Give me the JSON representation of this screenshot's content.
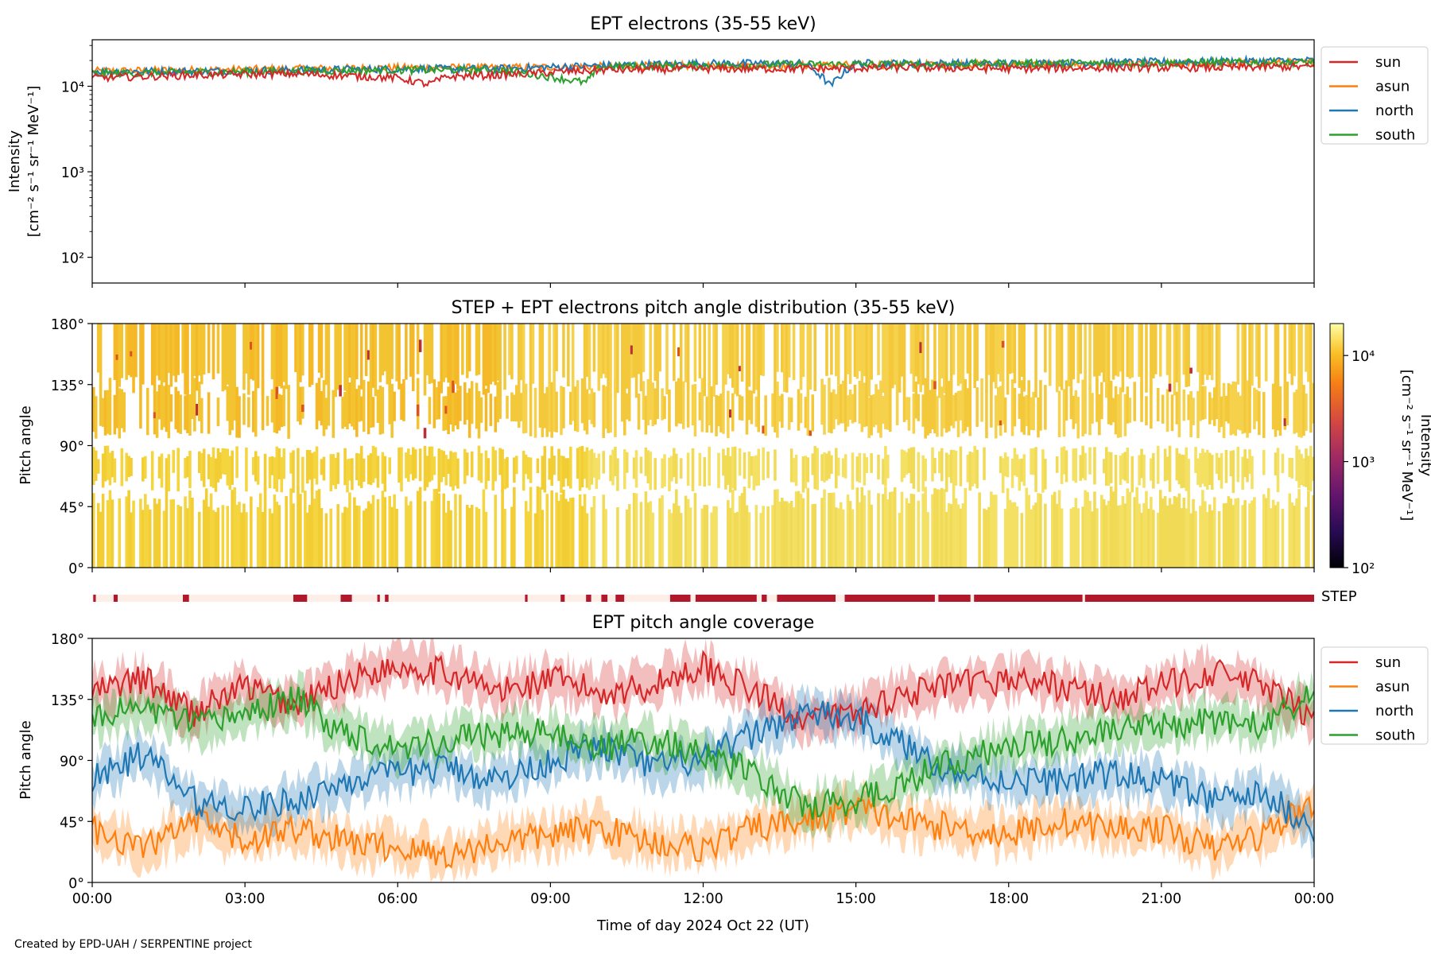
{
  "chart_data": [
    {
      "type": "line",
      "title": "EPT electrons (35-55 keV)",
      "ylabel": "Intensity",
      "ylabel_units": "[cm⁻² s⁻¹ sr⁻¹ MeV⁻¹]",
      "yscale": "log",
      "ylim": [
        50,
        35000
      ],
      "yticks": [
        "10²",
        "10³",
        "10⁴"
      ],
      "x_range_hours": [
        0,
        24
      ],
      "legend_position": "outside-top-right",
      "series": [
        {
          "name": "sun",
          "color": "#d62728",
          "x_hours": [
            0,
            2,
            4,
            6,
            6.6,
            7,
            8,
            9,
            10,
            12,
            14,
            16,
            18,
            20,
            22,
            24
          ],
          "values": [
            12500,
            13500,
            14000,
            12500,
            10500,
            13000,
            13500,
            14500,
            15500,
            16000,
            16000,
            16500,
            16000,
            16500,
            16500,
            17000
          ]
        },
        {
          "name": "asun",
          "color": "#ff7f0e",
          "x_hours": [
            0,
            2,
            4,
            6,
            8,
            10,
            12,
            14,
            16,
            18,
            20,
            22,
            24
          ],
          "values": [
            15000,
            15500,
            16000,
            16500,
            16500,
            17000,
            17500,
            17500,
            18000,
            18000,
            18000,
            18500,
            19000
          ]
        },
        {
          "name": "north",
          "color": "#1f77b4",
          "x_hours": [
            0,
            2,
            4,
            6,
            8,
            10,
            12,
            14,
            14.5,
            15,
            16,
            18,
            20,
            22,
            24
          ],
          "values": [
            15000,
            15000,
            15500,
            16000,
            16000,
            17500,
            18500,
            18500,
            10000,
            18500,
            18500,
            18500,
            19000,
            19500,
            20000
          ]
        },
        {
          "name": "south",
          "color": "#2ca02c",
          "x_hours": [
            0,
            2,
            4,
            6,
            8,
            9.7,
            10,
            12,
            14,
            16,
            18,
            20,
            22,
            24
          ],
          "values": [
            14000,
            14500,
            15000,
            15500,
            15500,
            11000,
            17000,
            17500,
            18000,
            18000,
            18500,
            18500,
            19000,
            19000
          ]
        }
      ]
    },
    {
      "type": "heatmap",
      "title": "STEP + EPT electrons pitch angle distribution (35-55 keV)",
      "ylabel": "Pitch angle",
      "ylim": [
        0,
        180
      ],
      "yticks": [
        "0°",
        "45°",
        "90°",
        "135°",
        "180°"
      ],
      "colorbar": {
        "label": "Intensity",
        "units": "[cm⁻² s⁻¹ sr⁻¹ MeV⁻¹]",
        "scale": "log",
        "range": [
          100,
          20000
        ],
        "ticks": [
          "10²",
          "10³",
          "10⁴"
        ],
        "colormap": "inferno"
      }
    },
    {
      "type": "bar",
      "label": "STEP",
      "active_color": "#b2182b",
      "inactive_color": "#fdeee8",
      "active_intervals_hours": [
        [
          0.02,
          0.07
        ],
        [
          0.42,
          0.5
        ],
        [
          1.78,
          1.9
        ],
        [
          3.95,
          4.22
        ],
        [
          4.88,
          5.1
        ],
        [
          5.6,
          5.65
        ],
        [
          5.75,
          5.82
        ],
        [
          8.5,
          8.55
        ],
        [
          9.2,
          9.28
        ],
        [
          9.7,
          9.8
        ],
        [
          10.0,
          10.12
        ],
        [
          10.28,
          10.45
        ],
        [
          11.35,
          11.75
        ],
        [
          11.85,
          13.05
        ],
        [
          13.15,
          13.25
        ],
        [
          13.45,
          14.6
        ],
        [
          14.78,
          16.55
        ],
        [
          16.62,
          17.25
        ],
        [
          17.32,
          19.45
        ],
        [
          19.5,
          24.0
        ]
      ]
    },
    {
      "type": "line",
      "title": "EPT pitch angle coverage",
      "ylabel": "Pitch angle",
      "ylim": [
        0,
        180
      ],
      "yticks": [
        "0°",
        "45°",
        "90°",
        "135°",
        "180°"
      ],
      "xlabel": "Time of day 2024 Oct 22 (UT)",
      "xticks": [
        "00:00",
        "03:00",
        "06:00",
        "09:00",
        "12:00",
        "15:00",
        "18:00",
        "21:00",
        "00:00"
      ],
      "legend_position": "outside-top-right",
      "series": [
        {
          "name": "sun",
          "color": "#d62728",
          "x_hours": [
            0,
            1,
            2,
            3,
            4,
            5,
            6,
            7,
            8,
            9,
            10,
            11,
            12,
            13,
            14,
            15,
            16,
            17,
            18,
            19,
            20,
            21,
            22,
            23,
            24
          ],
          "values": [
            140,
            150,
            125,
            145,
            130,
            150,
            160,
            155,
            140,
            150,
            140,
            145,
            160,
            140,
            120,
            125,
            140,
            145,
            150,
            145,
            135,
            145,
            155,
            145,
            120
          ]
        },
        {
          "name": "asun",
          "color": "#ff7f0e",
          "x_hours": [
            0,
            1,
            2,
            3,
            4,
            5,
            6,
            7,
            8,
            9,
            10,
            11,
            12,
            13,
            14,
            15,
            16,
            17,
            18,
            19,
            20,
            21,
            22,
            23,
            24
          ],
          "values": [
            40,
            25,
            45,
            30,
            40,
            30,
            25,
            20,
            30,
            35,
            40,
            30,
            25,
            40,
            45,
            55,
            45,
            40,
            35,
            45,
            40,
            40,
            25,
            35,
            60
          ]
        },
        {
          "name": "north",
          "color": "#1f77b4",
          "x_hours": [
            0,
            1,
            2,
            3,
            4,
            5,
            6,
            7,
            8,
            9,
            10,
            11,
            12,
            13,
            14,
            15,
            16,
            17,
            18,
            19,
            20,
            21,
            22,
            23,
            24
          ],
          "values": [
            75,
            95,
            60,
            55,
            60,
            75,
            80,
            85,
            75,
            90,
            100,
            85,
            90,
            110,
            125,
            120,
            100,
            80,
            75,
            75,
            80,
            75,
            60,
            65,
            40
          ]
        },
        {
          "name": "south",
          "color": "#2ca02c",
          "x_hours": [
            0,
            1,
            2,
            3,
            4,
            5,
            6,
            7,
            8,
            9,
            10,
            11,
            12,
            13,
            14,
            15,
            16,
            17,
            18,
            19,
            20,
            21,
            22,
            23,
            24
          ],
          "values": [
            120,
            130,
            115,
            125,
            135,
            110,
            100,
            105,
            110,
            110,
            100,
            105,
            95,
            80,
            55,
            60,
            75,
            90,
            100,
            105,
            110,
            115,
            120,
            115,
            140
          ]
        }
      ]
    }
  ],
  "credit": "Created by EPD-UAH / SERPENTINE project",
  "colors": {
    "axis": "#000000",
    "background": "#ffffff"
  }
}
